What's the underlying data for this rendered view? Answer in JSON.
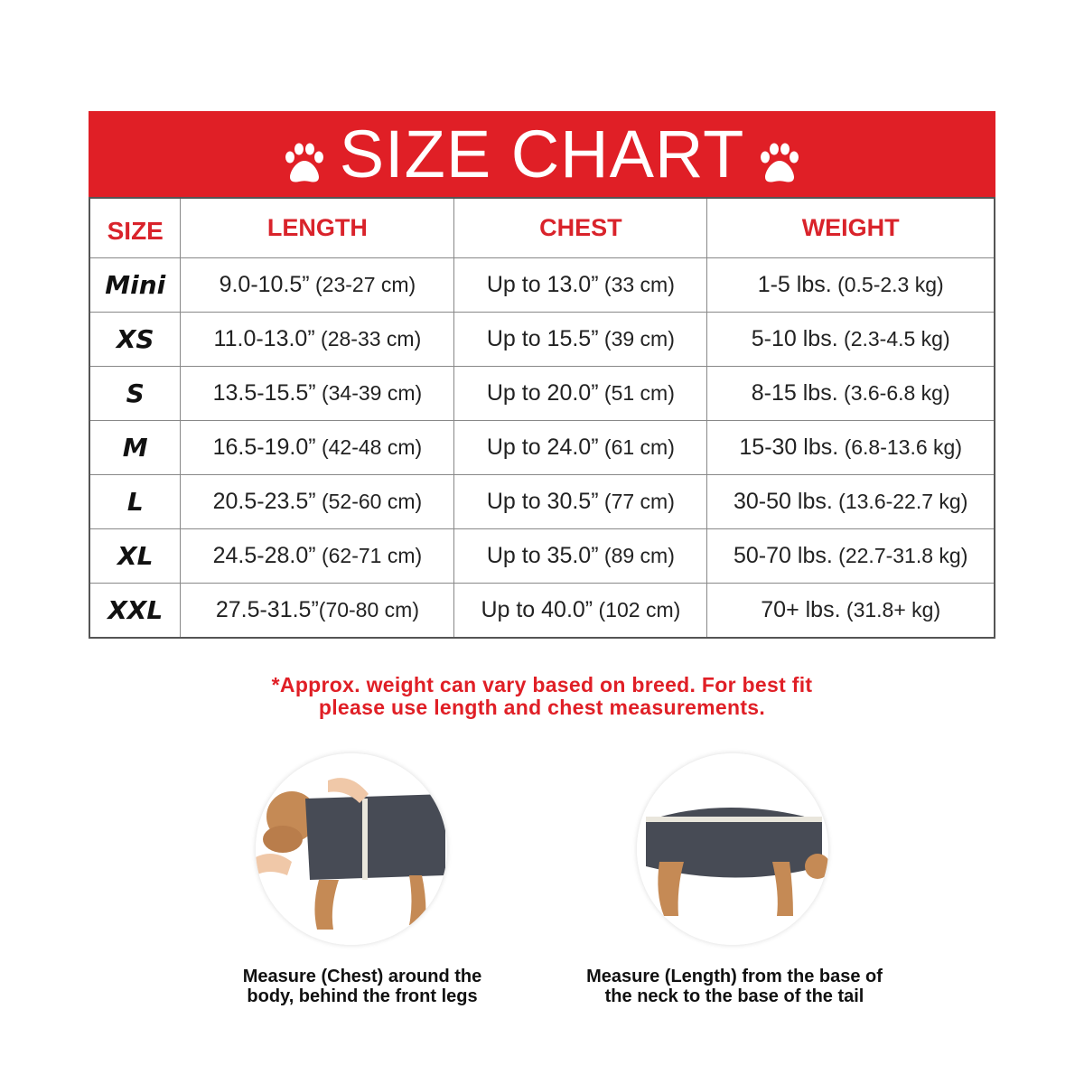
{
  "title": "SIZE CHART",
  "colors": {
    "accent": "#e01f26",
    "text": "#222222"
  },
  "icons": [
    "paw-icon",
    "paw-icon"
  ],
  "columns": [
    "SIZE",
    "LENGTH",
    "CHEST",
    "WEIGHT"
  ],
  "rows": [
    {
      "size": "Mini",
      "length": "9.0-10.5”",
      "length_metric": " (23-27 cm)",
      "chest": "Up to 13.0”",
      "chest_metric": " (33 cm)",
      "weight": "1-5 lbs.",
      "weight_metric": " (0.5-2.3 kg)"
    },
    {
      "size": "XS",
      "length": "11.0-13.0”",
      "length_metric": " (28-33 cm)",
      "chest": "Up to 15.5”",
      "chest_metric": " (39 cm)",
      "weight": "5-10 lbs.",
      "weight_metric": " (2.3-4.5 kg)"
    },
    {
      "size": "S",
      "length": "13.5-15.5”",
      "length_metric": " (34-39 cm)",
      "chest": "Up to 20.0”",
      "chest_metric": " (51 cm)",
      "weight": "8-15 lbs.",
      "weight_metric": " (3.6-6.8 kg)"
    },
    {
      "size": "M",
      "length": "16.5-19.0”",
      "length_metric": " (42-48 cm)",
      "chest": "Up to 24.0”",
      "chest_metric": " (61 cm)",
      "weight": "15-30 lbs.",
      "weight_metric": " (6.8-13.6 kg)"
    },
    {
      "size": "L",
      "length": "20.5-23.5”",
      "length_metric": " (52-60 cm)",
      "chest": "Up to 30.5”",
      "chest_metric": " (77 cm)",
      "weight": "30-50 lbs.",
      "weight_metric": " (13.6-22.7 kg)"
    },
    {
      "size": "XL",
      "length": "24.5-28.0”",
      "length_metric": " (62-71 cm)",
      "chest": "Up to 35.0”",
      "chest_metric": " (89 cm)",
      "weight": "50-70 lbs.",
      "weight_metric": " (22.7-31.8 kg)"
    },
    {
      "size": "XXL",
      "length": "27.5-31.5”",
      "length_metric": "(70-80 cm)",
      "chest": "Up to 40.0”",
      "chest_metric": " (102 cm)",
      "weight": "70+ lbs.",
      "weight_metric": " (31.8+ kg)"
    }
  ],
  "note": {
    "line1": "*Approx. weight can vary based on breed. For best fit",
    "line2": "please use length and chest measurements."
  },
  "measure": [
    {
      "line1": "Measure (Chest) around the",
      "line2": "body, behind the front legs"
    },
    {
      "line1": "Measure (Length) from the base of",
      "line2": "the neck to the base of the tail"
    }
  ]
}
